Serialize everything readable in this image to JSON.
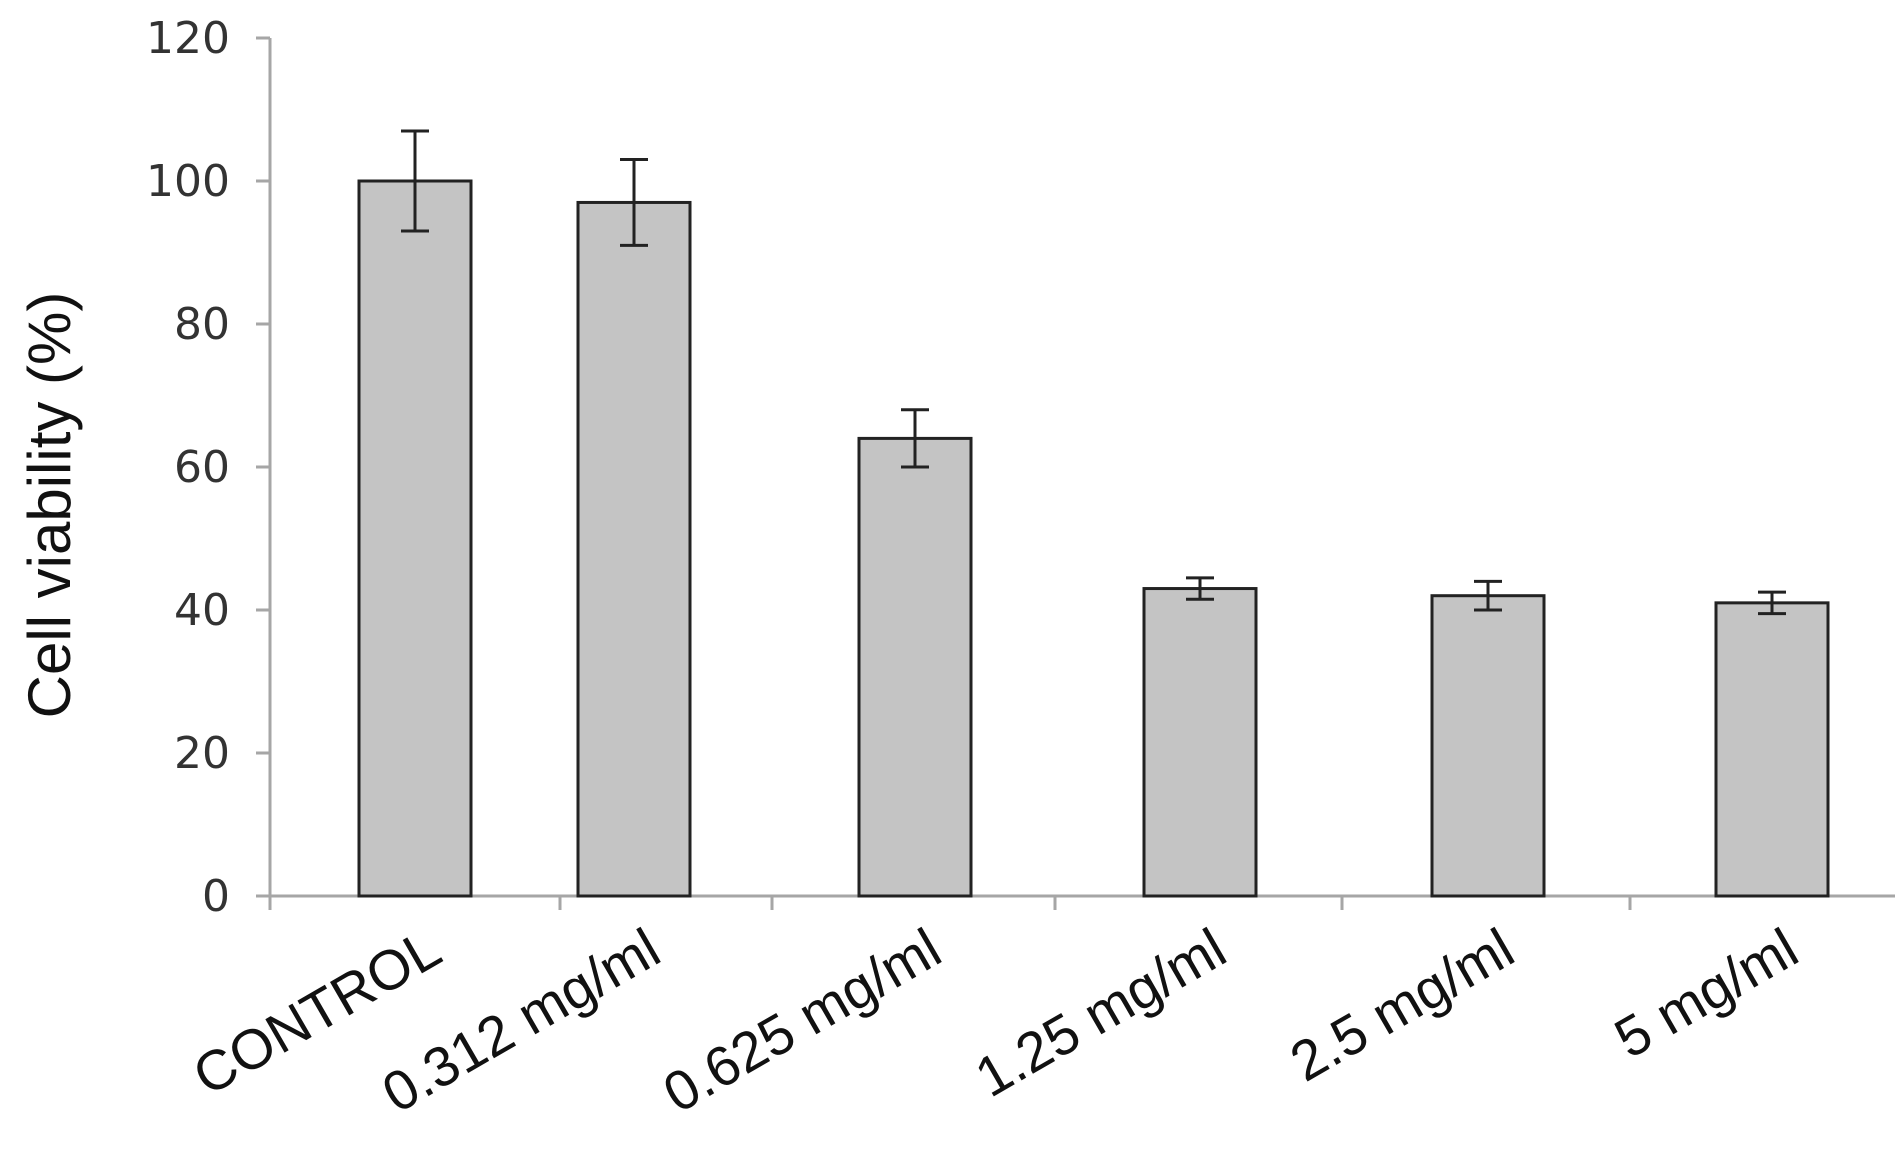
{
  "chart_data": {
    "type": "bar",
    "title": "",
    "xlabel": "",
    "ylabel": "Cell viability (%)",
    "ylim": [
      0,
      120
    ],
    "yticks": [
      0,
      20,
      40,
      60,
      80,
      100,
      120
    ],
    "ytick_labels": [
      "0",
      "20",
      "40",
      "60",
      "80",
      "100",
      "120"
    ],
    "grid": false,
    "legend": "none",
    "categories": [
      "CONTROL",
      "0.312 mg/ml",
      "0.625 mg/ml",
      "1.25 mg/ml",
      "2.5 mg/ml",
      "5 mg/ml"
    ],
    "values": [
      100,
      97,
      64,
      43,
      42,
      41
    ],
    "errors": [
      7,
      6,
      4,
      1.5,
      2,
      1.5
    ],
    "colors": {
      "bar": "#c4c4c4",
      "bar_edge": "#222222",
      "axis": "#a6a6a6",
      "error": "#222222"
    }
  }
}
